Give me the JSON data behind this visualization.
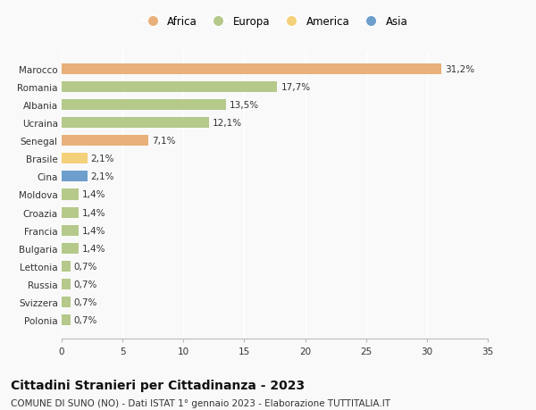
{
  "countries": [
    "Polonia",
    "Svizzera",
    "Russia",
    "Lettonia",
    "Bulgaria",
    "Francia",
    "Croazia",
    "Moldova",
    "Cina",
    "Brasile",
    "Senegal",
    "Ucraina",
    "Albania",
    "Romania",
    "Marocco"
  ],
  "values": [
    0.7,
    0.7,
    0.7,
    0.7,
    1.4,
    1.4,
    1.4,
    1.4,
    2.1,
    2.1,
    7.1,
    12.1,
    13.5,
    17.7,
    31.2
  ],
  "labels": [
    "0,7%",
    "0,7%",
    "0,7%",
    "0,7%",
    "1,4%",
    "1,4%",
    "1,4%",
    "1,4%",
    "2,1%",
    "2,1%",
    "7,1%",
    "12,1%",
    "13,5%",
    "17,7%",
    "31,2%"
  ],
  "colors": [
    "#b5c98a",
    "#b5c98a",
    "#b5c98a",
    "#b5c98a",
    "#b5c98a",
    "#b5c98a",
    "#b5c98a",
    "#b5c98a",
    "#6e9fcc",
    "#f5d07a",
    "#e8b07a",
    "#b5c98a",
    "#b5c98a",
    "#b5c98a",
    "#e8b07a"
  ],
  "legend_colors": {
    "Africa": "#e8b07a",
    "Europa": "#b5c98a",
    "America": "#f5d07a",
    "Asia": "#6e9fcc"
  },
  "xlim": [
    0,
    35
  ],
  "xticks": [
    0,
    5,
    10,
    15,
    20,
    25,
    30,
    35
  ],
  "title": "Cittadini Stranieri per Cittadinanza - 2023",
  "subtitle": "COMUNE DI SUNO (NO) - Dati ISTAT 1° gennaio 2023 - Elaborazione TUTTITALIA.IT",
  "background_color": "#f9f9f9",
  "bar_height": 0.6,
  "label_fontsize": 7.5,
  "ytick_fontsize": 7.5,
  "xtick_fontsize": 7.5,
  "legend_fontsize": 8.5,
  "title_fontsize": 10,
  "subtitle_fontsize": 7.5
}
